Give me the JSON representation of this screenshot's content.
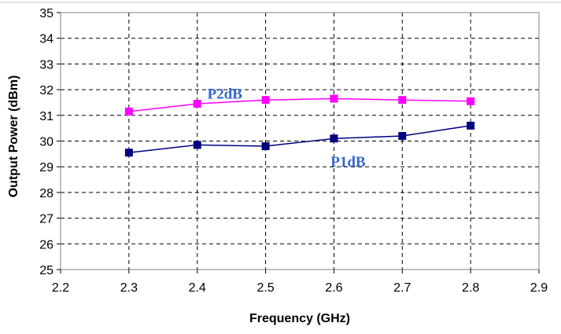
{
  "chart_data": {
    "type": "line",
    "title": "",
    "xlabel": "Frequency (GHz)",
    "ylabel": "Output Power (dBm)",
    "xlim": [
      2.2,
      2.9
    ],
    "ylim": [
      25,
      35
    ],
    "xticks": [
      "2.2",
      "2.3",
      "2.4",
      "2.5",
      "2.6",
      "2.7",
      "2.8",
      "2.9"
    ],
    "yticks": [
      "25",
      "26",
      "27",
      "28",
      "29",
      "30",
      "31",
      "32",
      "33",
      "34",
      "35"
    ],
    "grid": true,
    "grid_style": "dashed",
    "legend": "inline labels",
    "x": [
      2.3,
      2.4,
      2.5,
      2.6,
      2.7,
      2.8
    ],
    "series": [
      {
        "name": "P2dB",
        "values": [
          31.15,
          31.45,
          31.6,
          31.65,
          31.6,
          31.55
        ],
        "color": "#ff00ff",
        "label_color": "#3366cc"
      },
      {
        "name": "P1dB",
        "values": [
          29.55,
          29.85,
          29.8,
          30.1,
          30.2,
          30.6
        ],
        "color": "#000080",
        "label_color": "#3366cc"
      }
    ],
    "colors": {
      "plot_border": "#808080",
      "grid": "#000000",
      "background": "#ffffff"
    }
  }
}
